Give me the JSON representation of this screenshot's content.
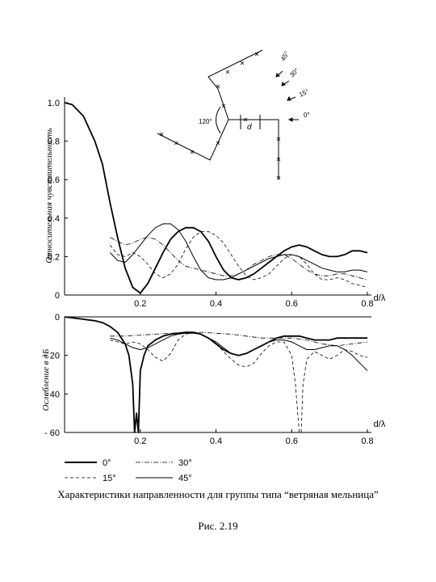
{
  "caption": "Характеристики направленности для группы типа “ветряная мельница”",
  "figure_number": "Рис. 2.19",
  "inset": {
    "angle_label": "120°",
    "spacing_label": "d",
    "direction_labels": [
      "45°",
      "30°",
      "15°",
      "0°"
    ]
  },
  "chart_data": [
    {
      "type": "line",
      "ylabel": "Относительная чувствительность",
      "xlabel": "d/λ",
      "xlim": [
        0,
        0.8
      ],
      "ylim": [
        0,
        1.0
      ],
      "x_ticks": [
        0.2,
        0.4,
        0.6,
        0.8
      ],
      "x_tick_labels": [
        "0.2",
        "0.4",
        "0.6",
        "0.8"
      ],
      "y_ticks": [
        0,
        0.2,
        0.4,
        0.6,
        0.8,
        1.0
      ],
      "y_tick_labels": [
        "0",
        "0.2",
        "0.4",
        "0.6",
        "0.8",
        "1.0"
      ],
      "series": [
        {
          "name": "0°",
          "style": "solid-thick",
          "x": [
            0,
            0.02,
            0.05,
            0.08,
            0.1,
            0.12,
            0.14,
            0.16,
            0.18,
            0.2,
            0.22,
            0.24,
            0.26,
            0.28,
            0.3,
            0.32,
            0.34,
            0.36,
            0.38,
            0.4,
            0.42,
            0.44,
            0.46,
            0.48,
            0.5,
            0.52,
            0.54,
            0.56,
            0.58,
            0.6,
            0.62,
            0.64,
            0.66,
            0.68,
            0.7,
            0.72,
            0.74,
            0.76,
            0.78,
            0.8
          ],
          "y": [
            1.0,
            0.99,
            0.93,
            0.8,
            0.68,
            0.48,
            0.3,
            0.14,
            0.04,
            0.01,
            0.06,
            0.14,
            0.22,
            0.29,
            0.33,
            0.35,
            0.35,
            0.33,
            0.28,
            0.2,
            0.13,
            0.09,
            0.08,
            0.09,
            0.11,
            0.14,
            0.17,
            0.2,
            0.23,
            0.25,
            0.26,
            0.25,
            0.23,
            0.21,
            0.2,
            0.2,
            0.21,
            0.23,
            0.23,
            0.22
          ]
        },
        {
          "name": "15°",
          "style": "dashed",
          "x": [
            0.12,
            0.14,
            0.16,
            0.18,
            0.2,
            0.22,
            0.24,
            0.26,
            0.28,
            0.3,
            0.32,
            0.34,
            0.36,
            0.38,
            0.4,
            0.42,
            0.44,
            0.46,
            0.48,
            0.5,
            0.52,
            0.54,
            0.56,
            0.58,
            0.6,
            0.62,
            0.64,
            0.66,
            0.68,
            0.7,
            0.72,
            0.74,
            0.76,
            0.78,
            0.8
          ],
          "y": [
            0.26,
            0.21,
            0.2,
            0.22,
            0.2,
            0.16,
            0.11,
            0.09,
            0.11,
            0.16,
            0.24,
            0.3,
            0.33,
            0.33,
            0.31,
            0.27,
            0.21,
            0.15,
            0.1,
            0.08,
            0.09,
            0.11,
            0.15,
            0.19,
            0.21,
            0.2,
            0.16,
            0.11,
            0.08,
            0.08,
            0.09,
            0.08,
            0.06,
            0.05,
            0.04
          ]
        },
        {
          "name": "30°",
          "style": "dashdot",
          "x": [
            0.12,
            0.14,
            0.16,
            0.18,
            0.2,
            0.22,
            0.24,
            0.26,
            0.28,
            0.3,
            0.32,
            0.34,
            0.36,
            0.38,
            0.4,
            0.42,
            0.44,
            0.46,
            0.48,
            0.5,
            0.52,
            0.54,
            0.56,
            0.58,
            0.6,
            0.62,
            0.64,
            0.66,
            0.68,
            0.7,
            0.72,
            0.74,
            0.76,
            0.78,
            0.8
          ],
          "y": [
            0.3,
            0.28,
            0.26,
            0.27,
            0.29,
            0.3,
            0.29,
            0.26,
            0.22,
            0.18,
            0.15,
            0.14,
            0.13,
            0.12,
            0.11,
            0.1,
            0.1,
            0.11,
            0.13,
            0.16,
            0.18,
            0.2,
            0.21,
            0.21,
            0.19,
            0.16,
            0.13,
            0.11,
            0.1,
            0.1,
            0.11,
            0.11,
            0.1,
            0.09,
            0.08
          ]
        },
        {
          "name": "45°",
          "style": "solid-thin",
          "x": [
            0.12,
            0.14,
            0.16,
            0.18,
            0.2,
            0.22,
            0.24,
            0.26,
            0.28,
            0.3,
            0.32,
            0.34,
            0.36,
            0.38,
            0.4,
            0.42,
            0.44,
            0.46,
            0.48,
            0.5,
            0.52,
            0.54,
            0.56,
            0.58,
            0.6,
            0.62,
            0.64,
            0.66,
            0.68,
            0.7,
            0.72,
            0.74,
            0.76,
            0.78,
            0.8
          ],
          "y": [
            0.22,
            0.18,
            0.17,
            0.21,
            0.26,
            0.31,
            0.35,
            0.37,
            0.37,
            0.34,
            0.28,
            0.2,
            0.13,
            0.09,
            0.08,
            0.08,
            0.09,
            0.11,
            0.13,
            0.15,
            0.17,
            0.19,
            0.2,
            0.21,
            0.21,
            0.2,
            0.18,
            0.16,
            0.14,
            0.13,
            0.12,
            0.12,
            0.13,
            0.13,
            0.12
          ]
        }
      ]
    },
    {
      "type": "line",
      "ylabel": "Ослабление в дБ",
      "xlabel": "d/λ",
      "xlim": [
        0,
        0.8
      ],
      "ylim": [
        -60,
        0
      ],
      "x_ticks": [
        0.2,
        0.4,
        0.6,
        0.8
      ],
      "x_tick_labels": [
        "0.2",
        "0.4",
        "0.6",
        "0.8"
      ],
      "y_ticks": [
        0,
        -20,
        -40,
        -60
      ],
      "y_tick_labels": [
        "0",
        "- 20",
        "- 40",
        "- 60"
      ],
      "series": [
        {
          "name": "0°",
          "style": "solid-thick",
          "x": [
            0,
            0.04,
            0.08,
            0.1,
            0.12,
            0.14,
            0.16,
            0.17,
            0.18,
            0.185,
            0.19,
            0.195,
            0.2,
            0.21,
            0.22,
            0.24,
            0.26,
            0.28,
            0.3,
            0.32,
            0.34,
            0.36,
            0.38,
            0.4,
            0.42,
            0.44,
            0.46,
            0.48,
            0.5,
            0.52,
            0.54,
            0.56,
            0.58,
            0.6,
            0.62,
            0.64,
            0.66,
            0.68,
            0.7,
            0.72,
            0.74,
            0.76,
            0.78,
            0.8
          ],
          "y": [
            0,
            -1,
            -2,
            -3,
            -5,
            -8,
            -14,
            -20,
            -35,
            -60,
            -50,
            -60,
            -28,
            -20,
            -15,
            -12,
            -10,
            -9,
            -8.5,
            -8,
            -8,
            -9,
            -11,
            -14,
            -17,
            -19,
            -20,
            -19,
            -17,
            -15,
            -13,
            -11,
            -10,
            -10,
            -10,
            -11,
            -12,
            -12,
            -12,
            -11,
            -11,
            -11,
            -11,
            -11
          ]
        },
        {
          "name": "15°",
          "style": "dashed",
          "x": [
            0.12,
            0.14,
            0.16,
            0.18,
            0.2,
            0.22,
            0.24,
            0.26,
            0.28,
            0.3,
            0.32,
            0.34,
            0.36,
            0.38,
            0.4,
            0.42,
            0.44,
            0.46,
            0.48,
            0.5,
            0.52,
            0.54,
            0.56,
            0.58,
            0.6,
            0.61,
            0.62,
            0.625,
            0.63,
            0.64,
            0.66,
            0.68,
            0.7,
            0.72,
            0.74,
            0.76,
            0.78,
            0.8
          ],
          "y": [
            -12,
            -13,
            -14,
            -13,
            -14,
            -17,
            -21,
            -23,
            -19,
            -12,
            -9,
            -8,
            -9,
            -11,
            -14,
            -18,
            -22,
            -25,
            -26,
            -24,
            -19,
            -15,
            -13,
            -13,
            -20,
            -35,
            -60,
            -60,
            -35,
            -22,
            -18,
            -20,
            -22,
            -20,
            -17,
            -18,
            -20,
            -21
          ]
        },
        {
          "name": "30°",
          "style": "dashdot",
          "x": [
            0.12,
            0.16,
            0.2,
            0.24,
            0.28,
            0.32,
            0.36,
            0.4,
            0.44,
            0.48,
            0.52,
            0.56,
            0.6,
            0.64,
            0.68,
            0.72,
            0.76,
            0.8
          ],
          "y": [
            -10,
            -10,
            -9.5,
            -9,
            -8.5,
            -8,
            -8,
            -8.5,
            -9,
            -10,
            -11,
            -11,
            -11,
            -12,
            -14,
            -15,
            -14,
            -13
          ]
        },
        {
          "name": "45°",
          "style": "solid-thin",
          "x": [
            0.12,
            0.14,
            0.16,
            0.18,
            0.2,
            0.22,
            0.24,
            0.26,
            0.28,
            0.3,
            0.32,
            0.34,
            0.36,
            0.38,
            0.4,
            0.42,
            0.44,
            0.46,
            0.48,
            0.5,
            0.52,
            0.54,
            0.56,
            0.58,
            0.6,
            0.62,
            0.64,
            0.66,
            0.68,
            0.7,
            0.72,
            0.74,
            0.76,
            0.78,
            0.8
          ],
          "y": [
            -11,
            -12,
            -14,
            -16,
            -17,
            -16,
            -14,
            -12,
            -10,
            -9,
            -8.5,
            -8.5,
            -9,
            -11,
            -13,
            -16,
            -19,
            -20,
            -19,
            -17,
            -15,
            -13,
            -12,
            -12,
            -13,
            -15,
            -17,
            -17,
            -16,
            -15,
            -15,
            -17,
            -20,
            -24,
            -28
          ]
        }
      ]
    }
  ]
}
